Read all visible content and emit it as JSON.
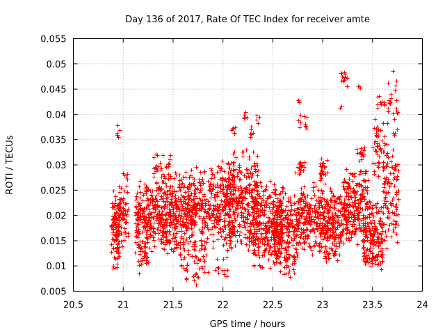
{
  "chart_data": {
    "type": "scatter",
    "title": "Day 136 of 2017, Rate Of TEC Index for receiver amte",
    "xlabel": "GPS time / hours",
    "ylabel": "ROTI / TECUs",
    "xlim": [
      20.5,
      24
    ],
    "ylim": [
      0.005,
      0.055
    ],
    "xticks": [
      20.5,
      21,
      21.5,
      22,
      22.5,
      23,
      23.5,
      24
    ],
    "xtick_labels": [
      "20.5",
      "21",
      "21.5",
      "22",
      "22.5",
      "23",
      "23.5",
      "24"
    ],
    "yticks": [
      0.005,
      0.01,
      0.015,
      0.02,
      0.025,
      0.03,
      0.035,
      0.04,
      0.045,
      0.05,
      0.055
    ],
    "ytick_labels": [
      "0.005",
      "0.01",
      "0.015",
      "0.02",
      "0.025",
      "0.03",
      "0.035",
      "0.04",
      "0.045",
      "0.05",
      "0.055"
    ],
    "grid": true,
    "marker": "+",
    "color": "#ff0000",
    "series": [
      {
        "name": "ROTI",
        "density": [
          {
            "x": [
              20.88,
              20.96
            ],
            "y": [
              0.009,
              0.026
            ],
            "n": 120
          },
          {
            "x": [
              20.93,
              20.97
            ],
            "y": [
              0.033,
              0.039
            ],
            "n": 6
          },
          {
            "x": [
              20.95,
              21.05
            ],
            "y": [
              0.012,
              0.03
            ],
            "n": 60
          },
          {
            "x": [
              21.12,
              21.5
            ],
            "y": [
              0.012,
              0.028
            ],
            "n": 380
          },
          {
            "x": [
              21.15,
              21.25
            ],
            "y": [
              0.008,
              0.016
            ],
            "n": 25
          },
          {
            "x": [
              21.3,
              21.48
            ],
            "y": [
              0.026,
              0.033
            ],
            "n": 35
          },
          {
            "x": [
              21.5,
              21.72
            ],
            "y": [
              0.011,
              0.03
            ],
            "n": 230
          },
          {
            "x": [
              21.58,
              21.65
            ],
            "y": [
              0.007,
              0.012
            ],
            "n": 12
          },
          {
            "x": [
              21.7,
              21.85
            ],
            "y": [
              0.006,
              0.016
            ],
            "n": 40
          },
          {
            "x": [
              21.7,
              21.95
            ],
            "y": [
              0.013,
              0.03
            ],
            "n": 170
          },
          {
            "x": [
              21.92,
              22.05
            ],
            "y": [
              0.007,
              0.012
            ],
            "n": 12
          },
          {
            "x": [
              21.95,
              22.1
            ],
            "y": [
              0.012,
              0.032
            ],
            "n": 150
          },
          {
            "x": [
              22.05,
              22.35
            ],
            "y": [
              0.012,
              0.034
            ],
            "n": 300
          },
          {
            "x": [
              22.08,
              22.12
            ],
            "y": [
              0.036,
              0.038
            ],
            "n": 6
          },
          {
            "x": [
              22.2,
              22.24
            ],
            "y": [
              0.039,
              0.041
            ],
            "n": 6
          },
          {
            "x": [
              22.27,
              22.31
            ],
            "y": [
              0.035,
              0.038
            ],
            "n": 6
          },
          {
            "x": [
              22.33,
              22.37
            ],
            "y": [
              0.038,
              0.041
            ],
            "n": 4
          },
          {
            "x": [
              22.3,
              22.6
            ],
            "y": [
              0.008,
              0.028
            ],
            "n": 300
          },
          {
            "x": [
              22.5,
              22.75
            ],
            "y": [
              0.009,
              0.026
            ],
            "n": 220
          },
          {
            "x": [
              22.6,
              22.72
            ],
            "y": [
              0.007,
              0.012
            ],
            "n": 20
          },
          {
            "x": [
              22.72,
              22.82
            ],
            "y": [
              0.028,
              0.031
            ],
            "n": 20
          },
          {
            "x": [
              22.75,
              22.85
            ],
            "y": [
              0.036,
              0.04
            ],
            "n": 10
          },
          {
            "x": [
              22.75,
              22.79
            ],
            "y": [
              0.042,
              0.043
            ],
            "n": 2
          },
          {
            "x": [
              22.75,
              23.0
            ],
            "y": [
              0.012,
              0.027
            ],
            "n": 220
          },
          {
            "x": [
              22.97,
              23.05
            ],
            "y": [
              0.026,
              0.033
            ],
            "n": 30
          },
          {
            "x": [
              23.0,
              23.25
            ],
            "y": [
              0.012,
              0.026
            ],
            "n": 220
          },
          {
            "x": [
              23.0,
              23.15
            ],
            "y": [
              0.01,
              0.014
            ],
            "n": 20
          },
          {
            "x": [
              23.17,
              23.2
            ],
            "y": [
              0.041,
              0.042
            ],
            "n": 3
          },
          {
            "x": [
              23.18,
              23.26
            ],
            "y": [
              0.045,
              0.049
            ],
            "n": 14
          },
          {
            "x": [
              23.2,
              23.45
            ],
            "y": [
              0.014,
              0.03
            ],
            "n": 200
          },
          {
            "x": [
              23.33,
              23.42
            ],
            "y": [
              0.03,
              0.034
            ],
            "n": 15
          },
          {
            "x": [
              23.35,
              23.38
            ],
            "y": [
              0.045,
              0.046
            ],
            "n": 3
          },
          {
            "x": [
              23.4,
              23.6
            ],
            "y": [
              0.009,
              0.024
            ],
            "n": 160
          },
          {
            "x": [
              23.42,
              23.6
            ],
            "y": [
              0.01,
              0.013
            ],
            "n": 30
          },
          {
            "x": [
              23.5,
              23.65
            ],
            "y": [
              0.026,
              0.04
            ],
            "n": 50
          },
          {
            "x": [
              23.55,
              23.62
            ],
            "y": [
              0.04,
              0.044
            ],
            "n": 10
          },
          {
            "x": [
              23.6,
              23.76
            ],
            "y": [
              0.012,
              0.035
            ],
            "n": 110
          },
          {
            "x": [
              23.65,
              23.76
            ],
            "y": [
              0.035,
              0.05
            ],
            "n": 25
          }
        ]
      }
    ]
  }
}
